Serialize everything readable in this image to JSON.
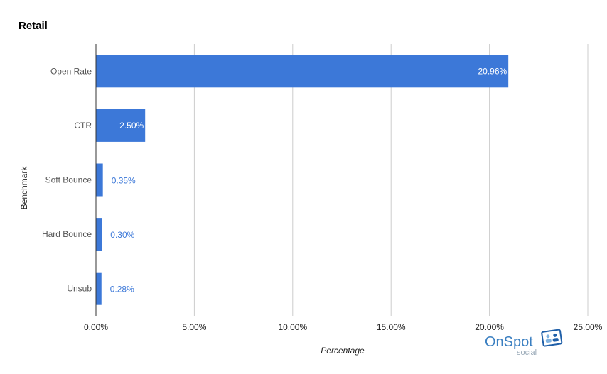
{
  "chart_data": {
    "type": "bar",
    "orientation": "horizontal",
    "title": "Retail",
    "xlabel": "Percentage",
    "ylabel": "Benchmark",
    "categories": [
      "Open Rate",
      "CTR",
      "Soft Bounce",
      "Hard Bounce",
      "Unsub"
    ],
    "values": [
      20.96,
      2.5,
      0.35,
      0.3,
      0.28
    ],
    "value_labels": [
      "20.96%",
      "2.50%",
      "0.35%",
      "0.30%",
      "0.28%"
    ],
    "xlim": [
      0,
      25
    ],
    "xticks": [
      "0.00%",
      "5.00%",
      "10.00%",
      "15.00%",
      "20.00%",
      "25.00%"
    ],
    "grid": "vertical",
    "legend": "none",
    "colors": {
      "bar": "#3c78d8",
      "grid": "#cccccc",
      "axis": "#333333"
    }
  },
  "logo": {
    "main": "OnSpot",
    "sub": "social"
  }
}
